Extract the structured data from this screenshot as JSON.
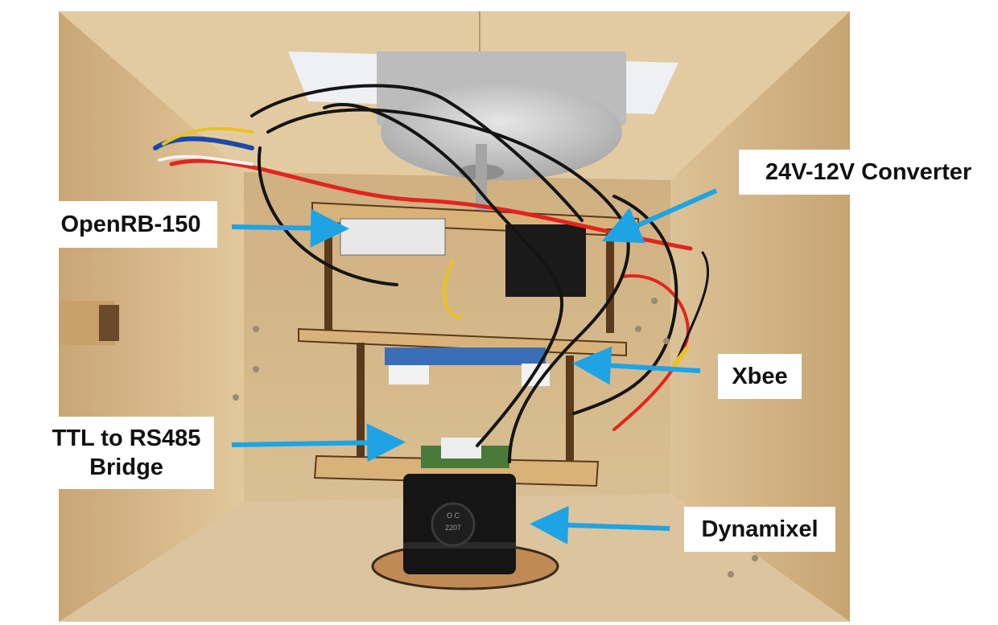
{
  "photo": {
    "subject": "electronics assembly inside wooden box",
    "colors": {
      "wood": "#d9bd8f",
      "wood_dark": "#b8975f",
      "metal": "#c9c9c9",
      "wire_red": "#e0251f",
      "wire_black": "#141414",
      "arrow": "#1ea4e4"
    }
  },
  "callouts": {
    "openrb": "OpenRB-150",
    "converter": "24V-12V Converter",
    "xbee": "Xbee",
    "ttl_bridge": "TTL to RS485\nBridge",
    "dynamixel": "Dynamixel"
  },
  "servo_marking": "2207"
}
